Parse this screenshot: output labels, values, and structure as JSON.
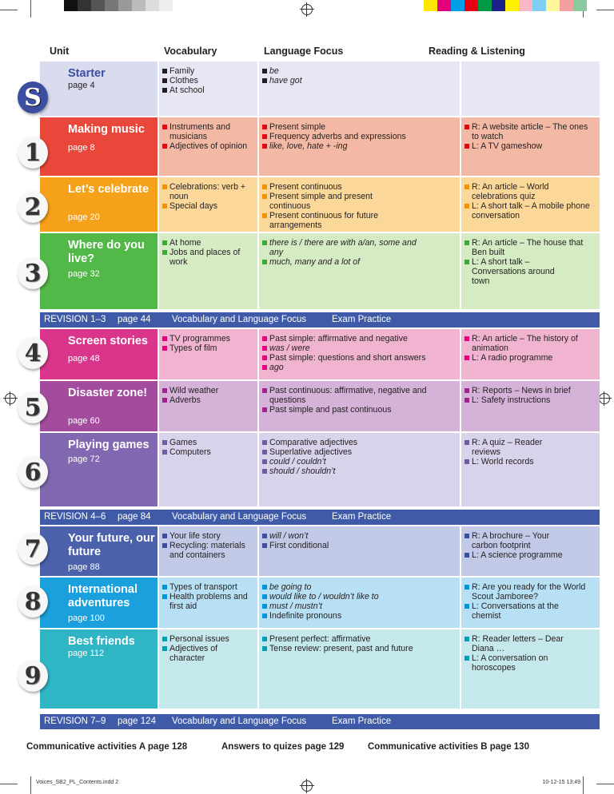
{
  "header": {
    "unit": "Unit",
    "vocabulary": "Vocabulary",
    "language_focus": "Language Focus",
    "reading_listening": "Reading & Listening"
  },
  "units": [
    {
      "badge": "S",
      "title": "Starter",
      "page": "page 4",
      "vocabulary": [
        "Family",
        "Clothes",
        "At school"
      ],
      "language": [
        "be",
        "have got"
      ],
      "reading": []
    },
    {
      "badge": "1",
      "title": "Making music",
      "page": "page 8",
      "vocabulary": [
        "Instruments and musicians",
        "Adjectives of opinion"
      ],
      "language": [
        "Present simple",
        "Frequency adverbs and expressions",
        "like, love, hate + -ing"
      ],
      "reading": [
        "R: A website article – The ones to watch",
        "L: A TV gameshow"
      ]
    },
    {
      "badge": "2",
      "title": "Let’s celebrate",
      "page": "page 20",
      "vocabulary": [
        "Celebrations: verb + noun",
        "Special days"
      ],
      "language": [
        "Present continuous",
        "Present simple and present continuous",
        "Present continuous for future arrangements"
      ],
      "reading": [
        "R: An article – World celebrations quiz",
        "L: A short talk – A mobile phone conversation"
      ]
    },
    {
      "badge": "3",
      "title": "Where do you live?",
      "page": "page 32",
      "vocabulary": [
        "At home",
        "Jobs and places of work"
      ],
      "language": [
        "there is / there are with a/an, some and any",
        "much, many and a lot of"
      ],
      "reading": [
        "R: An article – The house that Ben built",
        "L: A short talk – Conversations around town"
      ]
    },
    {
      "badge": "4",
      "title": "Screen stories",
      "page": "page 48",
      "vocabulary": [
        "TV programmes",
        "Types of film"
      ],
      "language": [
        "Past simple: affirmative and negative",
        "was / were",
        "Past simple: questions and short answers",
        "ago"
      ],
      "reading": [
        "R: An article – The history of animation",
        "L: A radio programme"
      ]
    },
    {
      "badge": "5",
      "title": "Disaster zone!",
      "page": "page 60",
      "vocabulary": [
        "Wild weather",
        "Adverbs"
      ],
      "language": [
        "Past continuous: affirmative, negative and questions",
        "Past simple and past continuous"
      ],
      "reading": [
        "R: Reports – News in brief",
        "L: Safety instructions"
      ]
    },
    {
      "badge": "6",
      "title": "Playing games",
      "page": "page 72",
      "vocabulary": [
        "Games",
        "Computers"
      ],
      "language": [
        "Comparative adjectives",
        "Superlative adjectives",
        "could / couldn’t",
        "should / shouldn’t"
      ],
      "reading": [
        "R: A quiz – Reader reviews",
        "L: World records"
      ]
    },
    {
      "badge": "7",
      "title": "Your future, our future",
      "page": "page 88",
      "vocabulary": [
        "Your life story",
        "Recycling: materials and containers"
      ],
      "language": [
        "will / won’t",
        "First conditional"
      ],
      "reading": [
        "R: A brochure – Your carbon footprint",
        "L: A science programme"
      ]
    },
    {
      "badge": "8",
      "title": "International adventures",
      "page": "page 100",
      "vocabulary": [
        "Types of transport",
        "Health problems and first aid"
      ],
      "language": [
        "be going to",
        "would like to / wouldn’t like to",
        "must / mustn’t",
        "Indefinite pronouns"
      ],
      "reading": [
        "R: Are you ready for the World Scout Jamboree?",
        "L: Conversations at the chemist"
      ]
    },
    {
      "badge": "9",
      "title": "Best friends",
      "page": "page 112",
      "vocabulary": [
        "Personal issues",
        "Adjectives of character"
      ],
      "language": [
        "Present perfect: affirmative",
        "Tense review: present, past and future"
      ],
      "reading": [
        "R: Reader letters – Dear Diana …",
        "L: A conversation on horoscopes"
      ]
    }
  ],
  "revisions": [
    {
      "label": "REVISION 1–3",
      "page": "page 44",
      "vocab": "Vocabulary and Language Focus",
      "exam": "Exam Practice"
    },
    {
      "label": "REVISION 4–6",
      "page": "page 84",
      "vocab": "Vocabulary and Language Focus",
      "exam": "Exam Practice"
    },
    {
      "label": "REVISION 7–9",
      "page": "page 124",
      "vocab": "Vocabulary and Language Focus",
      "exam": "Exam Practice"
    }
  ],
  "footer": {
    "comm_a": "Communicative activities A  page 128",
    "answers": "Answers to quizes  page 129",
    "comm_b": "Communicative activities B  page 130"
  },
  "slug": {
    "file": "Voices_SB2_PL_Contents.indd   2",
    "date": "10-12-15   13:49"
  },
  "colors": {
    "revision_bar": "#3f5ba8"
  }
}
